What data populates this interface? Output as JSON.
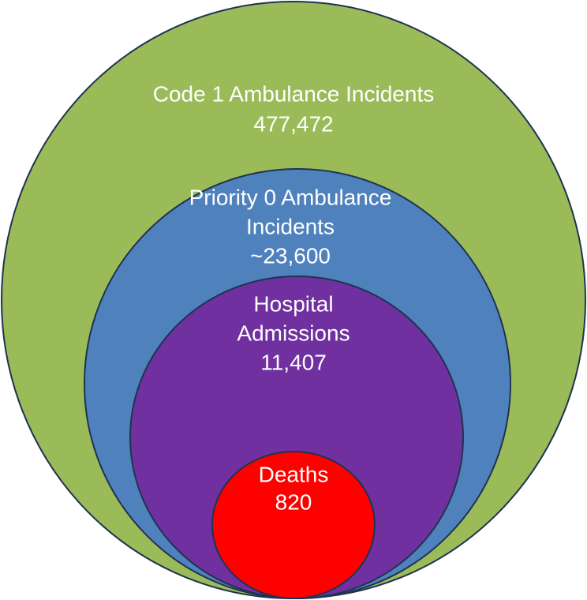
{
  "nodes": [
    {
      "label": [
        "Code 1 Ambulance Incidents"
      ],
      "value": "477,472"
    },
    {
      "label": [
        "Priority 0 Ambulance",
        "Incidents"
      ],
      "value": "~23,600"
    },
    {
      "label": [
        "Hospital",
        "Admissions"
      ],
      "value": "11,407"
    },
    {
      "label": [
        "Deaths"
      ],
      "value": "820"
    }
  ]
}
